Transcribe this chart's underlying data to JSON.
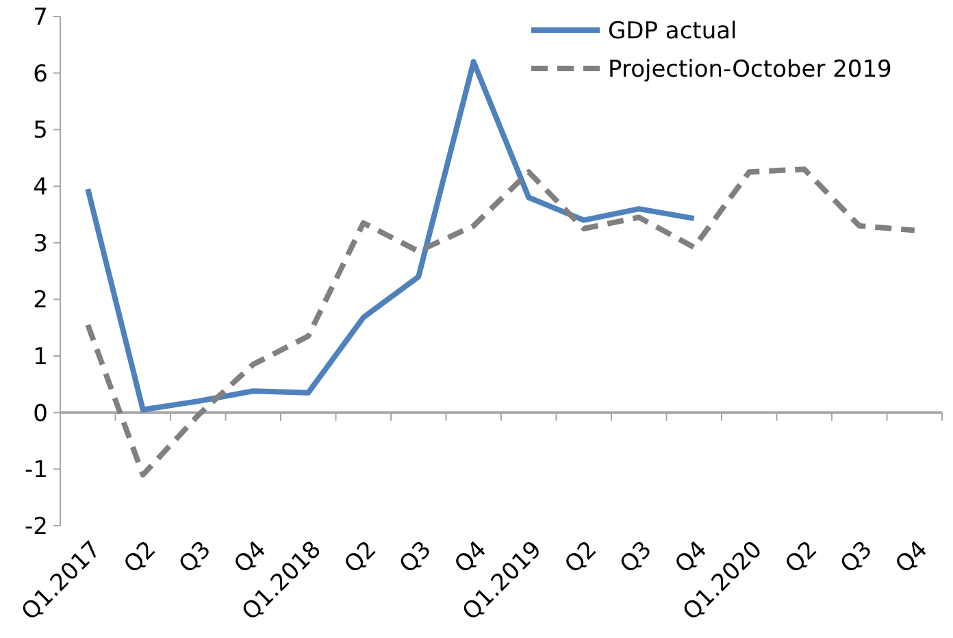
{
  "chart_data": {
    "type": "line",
    "categories": [
      "Q1.2017",
      "Q2",
      "Q3",
      "Q4",
      "Q1.2018",
      "Q2",
      "Q3",
      "Q4",
      "Q1.2019",
      "Q2",
      "Q3",
      "Q4",
      "Q1.2020",
      "Q2",
      "Q3",
      "Q4"
    ],
    "series": [
      {
        "name": "GDP actual",
        "color": "#4f81bd",
        "line_style": "solid",
        "values": [
          3.95,
          0.05,
          0.2,
          0.38,
          0.35,
          1.68,
          2.4,
          6.2,
          3.8,
          3.4,
          3.6,
          3.43,
          null,
          null,
          null,
          null
        ]
      },
      {
        "name": "Projection-October 2019",
        "color": "#808080",
        "line_style": "dashed",
        "values": [
          1.55,
          -1.1,
          -0.05,
          0.85,
          1.35,
          3.35,
          2.85,
          3.3,
          4.25,
          3.25,
          3.45,
          2.92,
          4.25,
          4.3,
          3.3,
          3.22
        ]
      }
    ],
    "ylim": [
      -2,
      7
    ],
    "yticks": [
      -2,
      -1,
      0,
      1,
      2,
      3,
      4,
      5,
      6,
      7
    ],
    "legend": "top right",
    "marker": "none"
  }
}
